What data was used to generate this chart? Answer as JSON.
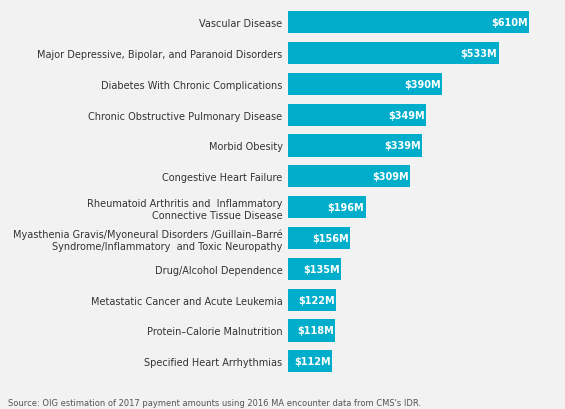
{
  "categories": [
    "Specified Heart Arrhythmias",
    "Protein–Calorie Malnutrition",
    "Metastatic Cancer and Acute Leukemia",
    "Drug/Alcohol Dependence",
    "Myasthenia Gravis/Myoneural Disorders /Guillain–Barré\nSyndrome/Inflammatory  and Toxic Neuropathy",
    "Rheumatoid Arthritis and  Inflammatory\nConnective Tissue Disease",
    "Congestive Heart Failure",
    "Morbid Obesity",
    "Chronic Obstructive Pulmonary Disease",
    "Diabetes With Chronic Complications",
    "Major Depressive, Bipolar, and Paranoid Disorders",
    "Vascular Disease"
  ],
  "values": [
    112,
    118,
    122,
    135,
    156,
    196,
    309,
    339,
    349,
    390,
    533,
    610
  ],
  "labels": [
    "$112M",
    "$118M",
    "$122M",
    "$135M",
    "$156M",
    "$196M",
    "$309M",
    "$339M",
    "$349M",
    "$390M",
    "$533M",
    "$610M"
  ],
  "bar_color": "#00AECC",
  "label_color": "#ffffff",
  "bg_color": "#f2f2f2",
  "source_text": "Source: OIG estimation of 2017 payment amounts using 2016 MA encounter data from CMS's IDR.",
  "xlim": [
    0,
    680
  ],
  "bar_height": 0.72,
  "label_fontsize": 7.0,
  "category_fontsize": 7.0
}
